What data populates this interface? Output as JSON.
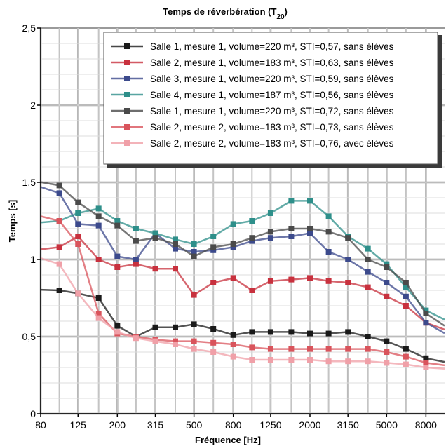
{
  "chart_data": {
    "type": "line",
    "title": "Temps de réverbération (T",
    "title_sub": "20",
    "title_close": ")",
    "xlabel": "Fréquence [Hz]",
    "ylabel": "Temps [s]",
    "ylim": [
      0,
      2.5
    ],
    "yticks": [
      "0",
      "0,5",
      "1",
      "1,5",
      "2",
      "2,5"
    ],
    "xticks": [
      "80",
      "125",
      "200",
      "315",
      "500",
      "800",
      "1250",
      "2000",
      "3150",
      "5000",
      "8000"
    ],
    "x": [
      "100",
      "125",
      "160",
      "200",
      "250",
      "315",
      "400",
      "500",
      "630",
      "800",
      "1000",
      "1250",
      "1600",
      "2000",
      "2500",
      "3150",
      "4000",
      "5000",
      "6300",
      "8000"
    ],
    "grid": true,
    "legend_position": "top-right",
    "series": [
      {
        "name": "Salle 1, mesure 1, volume=220 m³, STI=0,57, sans élèves",
        "color": "#1a1a1a",
        "values": [
          0.8,
          0.78,
          0.75,
          0.57,
          0.5,
          0.56,
          0.56,
          0.58,
          0.55,
          0.51,
          0.53,
          0.53,
          0.53,
          0.52,
          0.52,
          0.53,
          0.5,
          0.47,
          0.42,
          0.36
        ]
      },
      {
        "name": "Salle 2, mesure 1, volume=183 m³, STI=0,63, sans élèves",
        "color": "#c8313e",
        "values": [
          1.08,
          1.15,
          1.0,
          0.95,
          0.97,
          0.94,
          0.94,
          0.77,
          0.85,
          0.88,
          0.8,
          0.86,
          0.87,
          0.88,
          0.86,
          0.85,
          0.82,
          0.76,
          0.7,
          0.59
        ]
      },
      {
        "name": "Salle 3, mesure 1, volume=220 m³, STI=0,59, sans élèves",
        "color": "#3c4a8c",
        "values": [
          1.43,
          1.23,
          1.22,
          1.02,
          1.0,
          1.17,
          1.07,
          1.05,
          1.06,
          1.08,
          1.12,
          1.14,
          1.15,
          1.17,
          1.05,
          1.0,
          0.92,
          0.85,
          0.76,
          0.59
        ]
      },
      {
        "name": "Salle 4, mesure 1, volume=187 m³, STI=0,56, sans élèves",
        "color": "#2e8f8a",
        "values": [
          1.25,
          1.3,
          1.33,
          1.25,
          1.2,
          1.17,
          1.13,
          1.1,
          1.15,
          1.23,
          1.25,
          1.3,
          1.38,
          1.38,
          1.28,
          1.15,
          1.07,
          0.97,
          0.82,
          0.67
        ]
      },
      {
        "name": "Salle 1, mesure 1, volume=220 m³, STI=0,72, sans élèves",
        "color": "#4a4a4a",
        "values": [
          1.48,
          1.37,
          1.28,
          1.22,
          1.12,
          1.14,
          1.1,
          1.02,
          1.08,
          1.1,
          1.14,
          1.18,
          1.2,
          1.2,
          1.18,
          1.14,
          1.0,
          0.95,
          0.85,
          0.65
        ]
      },
      {
        "name": "Salle 2, mesure 2, volume=183 m³, STI=0,73, sans élèves",
        "color": "#d9545c",
        "values": [
          1.25,
          1.1,
          0.65,
          0.52,
          0.5,
          0.48,
          0.47,
          0.47,
          0.46,
          0.45,
          0.43,
          0.42,
          0.42,
          0.42,
          0.42,
          0.42,
          0.42,
          0.4,
          0.37,
          0.33
        ]
      },
      {
        "name": "Salle 2, mesure 2, volume=183 m³, STI=0,76, avec élèves",
        "color": "#f0a0a8",
        "values": [
          0.97,
          0.78,
          0.62,
          0.53,
          0.49,
          0.47,
          0.45,
          0.42,
          0.4,
          0.37,
          0.35,
          0.35,
          0.35,
          0.35,
          0.34,
          0.34,
          0.34,
          0.33,
          0.32,
          0.3
        ]
      }
    ]
  }
}
